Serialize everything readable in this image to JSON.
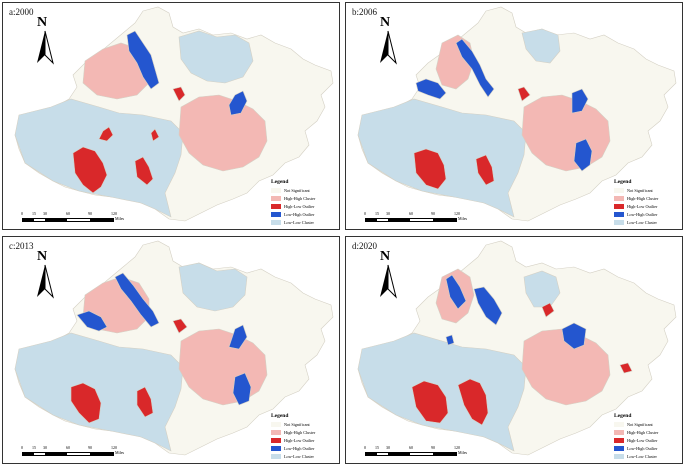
{
  "colors": {
    "not_significant": "#f8f7ef",
    "high_high": "#f3b8b4",
    "high_low": "#d9282a",
    "low_high": "#2456cf",
    "low_low": "#c7dde9",
    "border": "#d4d0c4"
  },
  "legend": {
    "title": "Legend",
    "items": [
      {
        "key": "not_significant",
        "label": "Not Significant"
      },
      {
        "key": "high_high",
        "label": "High-High Cluster"
      },
      {
        "key": "high_low",
        "label": "High-Low Outlier"
      },
      {
        "key": "low_high",
        "label": "Low-High Outlier"
      },
      {
        "key": "low_low",
        "label": "Low-Low Cluster"
      }
    ]
  },
  "scale": {
    "ticks": [
      "0",
      "15",
      "30",
      "60",
      "90",
      "120"
    ],
    "unit": "Miles"
  },
  "north_label": "N",
  "panels": [
    {
      "label": "a:2000",
      "variant": 0
    },
    {
      "label": "b:2006",
      "variant": 1
    },
    {
      "label": "c:2013",
      "variant": 2
    },
    {
      "label": "d:2020",
      "variant": 3
    }
  ]
}
